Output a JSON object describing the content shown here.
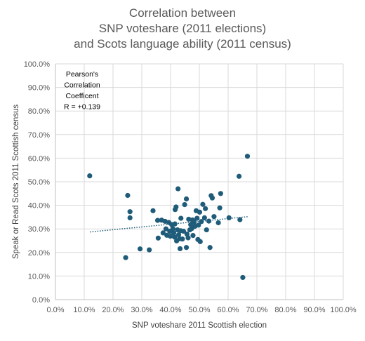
{
  "chart_data": {
    "type": "scatter",
    "title_lines": [
      "Correlation between",
      "SNP voteshare (2011 elections)",
      "and Scots language ability (2011 census)"
    ],
    "xlabel": "SNP voteshare 2011 Scottish election",
    "ylabel": "Speak or Read Scots 2011 Scottish census",
    "xlim": [
      0,
      1.0
    ],
    "ylim": [
      0,
      1.0
    ],
    "x_ticks": [
      "0.0%",
      "10.0%",
      "20.0%",
      "30.0%",
      "40.0%",
      "50.0%",
      "60.0%",
      "70.0%",
      "80.0%",
      "90.0%",
      "100.0%"
    ],
    "y_ticks": [
      "0.0%",
      "10.0%",
      "20.0%",
      "30.0%",
      "40.0%",
      "50.0%",
      "60.0%",
      "70.0%",
      "80.0%",
      "90.0%",
      "100.0%"
    ],
    "grid": true,
    "annotation_lines": [
      "Pearson's",
      "Correlation",
      "Coefficent",
      "R = +0.139"
    ],
    "marker_color": "#1f5c7a",
    "trendline_color": "#1f5c7a",
    "trendline": {
      "x": [
        0.12,
        0.67
      ],
      "y": [
        0.287,
        0.352
      ]
    },
    "points": [
      {
        "x": 0.119,
        "y": 0.525
      },
      {
        "x": 0.244,
        "y": 0.178
      },
      {
        "x": 0.251,
        "y": 0.442
      },
      {
        "x": 0.259,
        "y": 0.373
      },
      {
        "x": 0.259,
        "y": 0.347
      },
      {
        "x": 0.294,
        "y": 0.215
      },
      {
        "x": 0.326,
        "y": 0.211
      },
      {
        "x": 0.339,
        "y": 0.377
      },
      {
        "x": 0.355,
        "y": 0.336
      },
      {
        "x": 0.357,
        "y": 0.261
      },
      {
        "x": 0.369,
        "y": 0.337
      },
      {
        "x": 0.374,
        "y": 0.283
      },
      {
        "x": 0.381,
        "y": 0.332
      },
      {
        "x": 0.384,
        "y": 0.3
      },
      {
        "x": 0.387,
        "y": 0.273
      },
      {
        "x": 0.394,
        "y": 0.327
      },
      {
        "x": 0.397,
        "y": 0.29
      },
      {
        "x": 0.399,
        "y": 0.269
      },
      {
        "x": 0.404,
        "y": 0.318
      },
      {
        "x": 0.408,
        "y": 0.301
      },
      {
        "x": 0.411,
        "y": 0.283
      },
      {
        "x": 0.414,
        "y": 0.265
      },
      {
        "x": 0.415,
        "y": 0.321
      },
      {
        "x": 0.416,
        "y": 0.382
      },
      {
        "x": 0.419,
        "y": 0.393
      },
      {
        "x": 0.421,
        "y": 0.249
      },
      {
        "x": 0.424,
        "y": 0.296
      },
      {
        "x": 0.426,
        "y": 0.47
      },
      {
        "x": 0.428,
        "y": 0.275
      },
      {
        "x": 0.431,
        "y": 0.258
      },
      {
        "x": 0.433,
        "y": 0.216
      },
      {
        "x": 0.435,
        "y": 0.292
      },
      {
        "x": 0.436,
        "y": 0.345
      },
      {
        "x": 0.441,
        "y": 0.257
      },
      {
        "x": 0.445,
        "y": 0.29
      },
      {
        "x": 0.449,
        "y": 0.403
      },
      {
        "x": 0.455,
        "y": 0.427
      },
      {
        "x": 0.455,
        "y": 0.221
      },
      {
        "x": 0.457,
        "y": 0.278
      },
      {
        "x": 0.461,
        "y": 0.262
      },
      {
        "x": 0.463,
        "y": 0.341
      },
      {
        "x": 0.467,
        "y": 0.296
      },
      {
        "x": 0.47,
        "y": 0.318
      },
      {
        "x": 0.474,
        "y": 0.302
      },
      {
        "x": 0.476,
        "y": 0.338
      },
      {
        "x": 0.478,
        "y": 0.272
      },
      {
        "x": 0.482,
        "y": 0.329
      },
      {
        "x": 0.485,
        "y": 0.311
      },
      {
        "x": 0.489,
        "y": 0.377
      },
      {
        "x": 0.492,
        "y": 0.345
      },
      {
        "x": 0.495,
        "y": 0.255
      },
      {
        "x": 0.497,
        "y": 0.316
      },
      {
        "x": 0.501,
        "y": 0.371
      },
      {
        "x": 0.503,
        "y": 0.246
      },
      {
        "x": 0.507,
        "y": 0.331
      },
      {
        "x": 0.512,
        "y": 0.404
      },
      {
        "x": 0.518,
        "y": 0.347
      },
      {
        "x": 0.521,
        "y": 0.386
      },
      {
        "x": 0.525,
        "y": 0.296
      },
      {
        "x": 0.533,
        "y": 0.333
      },
      {
        "x": 0.537,
        "y": 0.221
      },
      {
        "x": 0.541,
        "y": 0.441
      },
      {
        "x": 0.545,
        "y": 0.431
      },
      {
        "x": 0.551,
        "y": 0.352
      },
      {
        "x": 0.566,
        "y": 0.326
      },
      {
        "x": 0.571,
        "y": 0.389
      },
      {
        "x": 0.574,
        "y": 0.45
      },
      {
        "x": 0.603,
        "y": 0.347
      },
      {
        "x": 0.638,
        "y": 0.523
      },
      {
        "x": 0.641,
        "y": 0.339
      },
      {
        "x": 0.651,
        "y": 0.094
      },
      {
        "x": 0.667,
        "y": 0.608
      }
    ]
  }
}
